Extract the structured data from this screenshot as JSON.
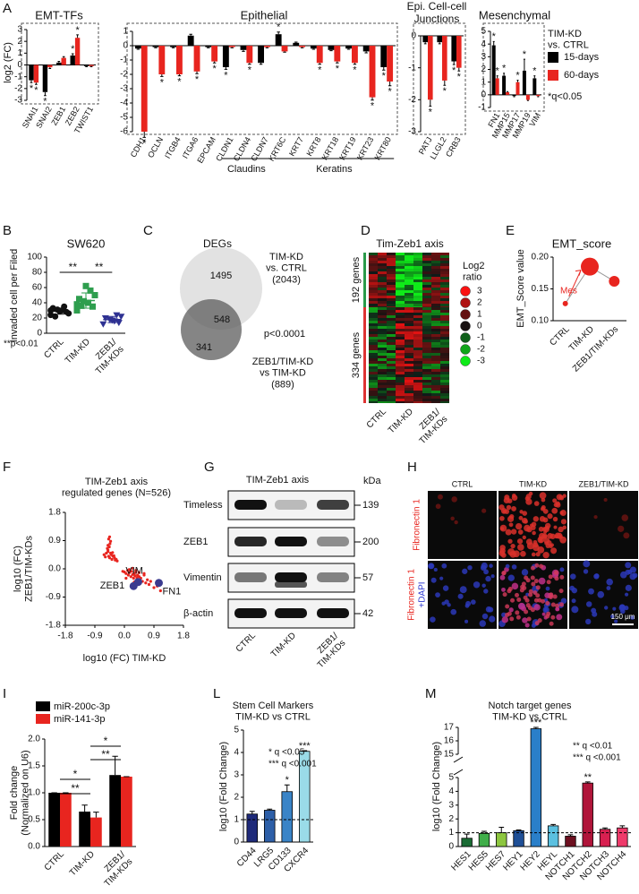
{
  "panel_labels": [
    "A",
    "B",
    "C",
    "D",
    "E",
    "F",
    "G",
    "H",
    "I",
    "L",
    "M"
  ],
  "chart_data": [
    {
      "type": "bar",
      "title": "EMT-TFs",
      "ylabel": "log2 (FC)",
      "legend_title": "TIM-KD\nvs. CTRL",
      "note": "*q<0.05",
      "categories": [
        "SNAI1",
        "SNAI2",
        "ZEB1",
        "ZEB2",
        "TWIST1"
      ],
      "series": [
        {
          "name": "15-days",
          "color": "#000000",
          "values": [
            -1.3,
            -2.3,
            0.2,
            0.8,
            -0.1
          ],
          "errors": [
            0.2,
            0.3,
            0.1,
            0.15,
            0.05
          ],
          "stars": [
            "*",
            "*",
            null,
            "*",
            null
          ]
        },
        {
          "name": "60-days",
          "color": "#e8251f",
          "values": [
            -1.5,
            -0.2,
            0.6,
            2.3,
            -0.1
          ],
          "errors": [
            0.15,
            0.1,
            0.1,
            0.25,
            0.05
          ],
          "stars": [
            "*",
            null,
            null,
            "*",
            null
          ]
        }
      ],
      "ylim": [
        -3,
        3
      ],
      "yticks": [
        -3,
        -2,
        -1,
        0,
        1,
        2,
        3
      ]
    },
    {
      "type": "bar",
      "title": "Epithelial",
      "categories": [
        "CDH1",
        "OCLN",
        "ITGB4",
        "ITGA6",
        "EPCAM",
        "CLDN1",
        "CLDN4",
        "CLDN7",
        "KRT6C",
        "KRT7",
        "KRT8",
        "KRT18",
        "KRT19",
        "KRT23",
        "KRT80"
      ],
      "groups": [
        {
          "label": "Claudins",
          "categories": [
            "CLDN1",
            "CLDN4",
            "CLDN7"
          ]
        },
        {
          "label": "Keratins",
          "categories": [
            "KRT6C",
            "KRT7",
            "KRT8",
            "KRT18",
            "KRT19",
            "KRT23",
            "KRT80"
          ]
        }
      ],
      "series": [
        {
          "name": "15-days",
          "color": "#000000",
          "values": [
            -0.2,
            -0.1,
            -0.1,
            0.7,
            -0.1,
            -1.5,
            -0.3,
            -1.2,
            0.8,
            0.2,
            -0.2,
            -0.3,
            -0.2,
            -0.4,
            -1.5
          ],
          "errors": [
            0.05,
            0.05,
            0.05,
            0.1,
            0.05,
            0.15,
            0.1,
            0.1,
            0.15,
            0.05,
            0.05,
            0.05,
            0.05,
            0.1,
            0.2
          ],
          "stars": [
            null,
            null,
            null,
            null,
            null,
            "*",
            null,
            null,
            "*",
            null,
            null,
            null,
            null,
            null,
            "*"
          ]
        },
        {
          "name": "60-days",
          "color": "#e8251f",
          "values": [
            -6.0,
            -2.0,
            -2.0,
            -1.8,
            -1.1,
            -0.1,
            -1.2,
            -0.1,
            -0.4,
            -0.1,
            -1.2,
            -1.1,
            -1.2,
            -3.6,
            -2.5
          ],
          "errors": [
            0.4,
            0.15,
            0.1,
            0.15,
            0.1,
            0.05,
            0.1,
            0.05,
            0.05,
            0.05,
            0.1,
            0.1,
            0.1,
            0.2,
            0.3
          ],
          "stars": [
            "*",
            "*",
            "*",
            "*",
            "*",
            null,
            "*",
            null,
            null,
            null,
            "*",
            "*",
            "*",
            "*",
            "*"
          ]
        }
      ],
      "ylim": [
        -6,
        1
      ],
      "yticks": [
        -6,
        -5,
        -4,
        -3,
        -2,
        -1,
        0,
        1
      ]
    },
    {
      "type": "bar",
      "title": "Epi. Cell-cell\nJunctions",
      "categories": [
        "PATJ",
        "LLGL2",
        "CRB3"
      ],
      "series": [
        {
          "name": "15-days",
          "color": "#000000",
          "values": [
            -0.2,
            -0.2,
            -0.8
          ],
          "errors": [
            0.05,
            0.05,
            0.1
          ],
          "stars": [
            null,
            null,
            "*"
          ]
        },
        {
          "name": "60-days",
          "color": "#e8251f",
          "values": [
            -2.0,
            -1.4,
            -1.0
          ],
          "errors": [
            0.2,
            0.15,
            0.1
          ],
          "stars": [
            "*",
            "*",
            "*"
          ]
        }
      ],
      "ylim": [
        -3,
        0
      ],
      "yticks": [
        -3,
        -2,
        -1,
        0
      ]
    },
    {
      "type": "bar",
      "title": "Mesenchymal",
      "categories": [
        "FN1",
        "MMP15",
        "MMP17",
        "MMP19",
        "VIM"
      ],
      "series": [
        {
          "name": "15-days",
          "color": "#000000",
          "values": [
            3.9,
            1.5,
            -0.1,
            1.9,
            1.3
          ],
          "errors": [
            0.3,
            0.2,
            0.05,
            0.9,
            0.2
          ],
          "stars": [
            "*",
            "*",
            null,
            "*",
            "*"
          ]
        },
        {
          "name": "60-days",
          "color": "#e8251f",
          "values": [
            1.3,
            0.2,
            1.0,
            -0.4,
            -0.1
          ],
          "errors": [
            0.2,
            0.05,
            0.15,
            0.05,
            0.05
          ],
          "stars": [
            "*",
            null,
            "*",
            null,
            null
          ]
        }
      ],
      "ylim": [
        -1,
        5
      ],
      "yticks": [
        -1,
        0,
        1,
        2,
        3,
        4,
        5
      ]
    },
    {
      "type": "strip",
      "title": "SW620",
      "ylabel": "Invaded cell per Filed",
      "note": "**p<0.01",
      "categories": [
        "CTRL",
        "TIM-KD",
        "ZEB1/\nTIM-KDs"
      ],
      "points": [
        [
          24,
          28,
          30,
          31,
          33,
          26,
          35,
          29,
          22,
          30
        ],
        [
          30,
          35,
          40,
          42,
          45,
          50,
          56,
          62,
          36,
          38
        ],
        [
          12,
          14,
          16,
          18,
          20,
          22,
          24,
          17
        ]
      ],
      "means": [
        29,
        43,
        18
      ],
      "sds": [
        4,
        10,
        4
      ],
      "colors": [
        "#111111",
        "#2e9e4e",
        "#2e3192"
      ],
      "markers": [
        "circle",
        "square",
        "triangle"
      ],
      "brackets": [
        {
          "text": "**",
          "from": "CTRL",
          "to": "TIM-KD"
        },
        {
          "text": "**",
          "from": "TIM-KD",
          "to": "ZEB1/\nTIM-KDs"
        }
      ],
      "ylim": [
        0,
        100
      ],
      "yticks": [
        0,
        20,
        40,
        60,
        80,
        100
      ]
    },
    {
      "type": "bubble",
      "title": "EMT_score",
      "ylabel": "EMT_Score value",
      "annotation": "Mes",
      "categories": [
        "CTRL",
        "TIM-KD",
        "ZEB1/TIM-KDs"
      ],
      "values": [
        0.127,
        0.185,
        0.162
      ],
      "sizes": [
        3,
        10,
        6
      ],
      "color": "#e8251f",
      "ylim": [
        0.1,
        0.2
      ],
      "yticks": [
        {
          "value": 0.1,
          "label": "0.10"
        },
        0.15,
        {
          "value": 0.2,
          "label": "0.20"
        }
      ]
    },
    {
      "type": "scatter",
      "title": "TIM-Zeb1 axis\nregulated genes (N=526)",
      "xlabel": "log10 (FC) TIM-KD",
      "ylabel": "log10 (FC)\nZEB1/TIM-KDs",
      "color": "#e8251f",
      "x": [
        -0.62,
        -0.55,
        -0.5,
        -0.48,
        -0.45,
        -0.42,
        -0.4,
        -0.38,
        -0.35,
        -0.3,
        -0.28,
        -0.25,
        -0.22,
        -0.5,
        -0.46,
        -0.44,
        -0.52,
        -0.58,
        -0.36,
        -0.32,
        -0.48,
        -0.45,
        -0.42,
        -0.5,
        0.0,
        0.05,
        0.1,
        0.12,
        0.15,
        0.2,
        0.22,
        0.25,
        0.28,
        0.3,
        0.32,
        0.35,
        0.38,
        0.4,
        0.42,
        0.45,
        0.5,
        0.55,
        0.6,
        0.65,
        0.7,
        0.75,
        0.8,
        0.9,
        1.0,
        1.1,
        0.15,
        0.25,
        0.35,
        0.45,
        0.05,
        -0.05,
        0.6,
        0.3
      ],
      "values": [
        0.45,
        0.5,
        0.55,
        0.4,
        0.35,
        0.5,
        0.45,
        0.3,
        0.4,
        0.35,
        0.28,
        0.3,
        0.25,
        0.6,
        0.7,
        0.8,
        0.65,
        0.38,
        0.52,
        0.42,
        0.95,
        1.02,
        0.88,
        0.75,
        -0.1,
        -0.15,
        -0.05,
        -0.2,
        -0.12,
        -0.25,
        -0.08,
        -0.18,
        -0.3,
        -0.15,
        -0.22,
        -0.1,
        -0.28,
        -0.2,
        -0.35,
        -0.25,
        -0.3,
        -0.4,
        -0.2,
        -0.45,
        -0.35,
        -0.5,
        -0.4,
        -0.6,
        -0.55,
        -0.7,
        -0.02,
        0.02,
        -0.05,
        -0.12,
        -0.3,
        -0.08,
        -0.15,
        -0.42
      ],
      "highlights": [
        {
          "label": "VIM",
          "x": 0.42,
          "y": -0.42,
          "color": "#3b3b8f"
        },
        {
          "label": "ZEB1",
          "x": 0.28,
          "y": -0.55,
          "color": "#3b3b8f"
        },
        {
          "label": "FN1",
          "x": 1.05,
          "y": -0.45,
          "color": "#3b3b8f"
        }
      ],
      "xlim": [
        -1.8,
        1.8
      ],
      "xticks": [
        -1.8,
        -0.9,
        {
          "value": 0,
          "label": "0.0"
        },
        0.9,
        1.8
      ],
      "ylim": [
        -1.8,
        1.8
      ],
      "yticks": [
        -1.8,
        -0.9,
        {
          "value": 0,
          "label": "0.0"
        },
        0.9,
        1.8
      ]
    },
    {
      "type": "bar",
      "ylabel": "Fold change\n(Normalized on U6)",
      "categories": [
        "CTRL",
        "TIM-KD",
        "ZEB1/\nTIM-KDs"
      ],
      "series": [
        {
          "name": "miR-200c-3p",
          "color": "#000000",
          "values": [
            1.0,
            0.65,
            1.33
          ],
          "errors": [
            0,
            0.12,
            0.35
          ]
        },
        {
          "name": "miR-141-3p",
          "color": "#e8251f",
          "values": [
            1.0,
            0.54,
            1.3
          ],
          "errors": [
            0,
            0.1,
            0
          ]
        }
      ],
      "brackets": [
        {
          "text": "*",
          "from": "CTRL",
          "to": "TIM-KD"
        },
        {
          "text": "**",
          "from": "CTRL",
          "to": "TIM-KD"
        },
        {
          "text": "*",
          "from": "TIM-KD",
          "to": "ZEB1/\nTIM-KDs"
        },
        {
          "text": "**",
          "from": "TIM-KD",
          "to": "ZEB1/\nTIM-KDs"
        }
      ],
      "ylim": [
        0,
        2
      ],
      "yticks": [
        {
          "value": 0,
          "label": "0.0"
        },
        0.5,
        {
          "value": 1,
          "label": "1.0"
        },
        1.5,
        {
          "value": 2,
          "label": "2.0"
        }
      ]
    },
    {
      "type": "bar",
      "title": "Stem Cell Markers\nTIM-KD vs CTRL",
      "ylabel": "log10 (Fold Change)",
      "notes": [
        "* q <0.05",
        "*** q <0.001"
      ],
      "categories": [
        "CD44",
        "LRG5",
        "CD133",
        "CXCR4"
      ],
      "values": [
        1.25,
        1.42,
        2.25,
        4.05
      ],
      "errors": [
        0.12,
        0.05,
        0.3,
        0.03
      ],
      "stars": [
        null,
        null,
        "*",
        "***"
      ],
      "colors": [
        "#1f2a7a",
        "#2d5fa8",
        "#3a84c7",
        "#9adbe8"
      ],
      "hline": 1,
      "ylim": [
        0,
        5
      ],
      "yticks": [
        0,
        1,
        2,
        3,
        4,
        5
      ]
    },
    {
      "type": "bar",
      "title": "Notch target genes\nTIM-KD vs CTRL",
      "ylabel": "log10 (Fold Change)",
      "notes": [
        "** q <0.01",
        "*** q <0.001"
      ],
      "categories": [
        "HES1",
        "HES5",
        "HES7",
        "HEY1",
        "HEY2",
        "HEYL",
        "NOTCH1",
        "NOTCH2",
        "NOTCH3",
        "NOTCH4"
      ],
      "values": [
        0.6,
        0.95,
        1.0,
        1.15,
        16.9,
        1.5,
        0.75,
        4.6,
        1.25,
        1.35
      ],
      "errors": [
        0.3,
        0.15,
        0.4,
        0.05,
        0.1,
        0.1,
        0.1,
        0.08,
        0.1,
        0.15
      ],
      "stars": [
        null,
        null,
        null,
        null,
        "***",
        null,
        null,
        "**",
        null,
        null
      ],
      "colors": [
        "#1a6b34",
        "#3fae49",
        "#8dc63f",
        "#1f4f96",
        "#2a7fc9",
        "#5bc0e0",
        "#6d1020",
        "#b0153a",
        "#d82050",
        "#ee3a6a"
      ],
      "hline": 1,
      "ylim": [
        0,
        17
      ],
      "ybreak": [
        5,
        15
      ],
      "yticks": [
        0,
        1,
        2,
        3,
        4,
        5,
        15,
        16,
        17
      ]
    }
  ],
  "venn": {
    "title": "DEGs",
    "sets": [
      "TIM-KD\nvs. CTRL\n(2043)",
      "ZEB1/TIM-KD\nvs TIM-KD\n(889)"
    ],
    "counts": [
      1495,
      548,
      341
    ],
    "p": "p<0.0001"
  },
  "heatmap": {
    "title": "Tim-Zeb1 axis",
    "row_groups": [
      "192 genes",
      "334 genes"
    ],
    "columns": [
      "CTRL",
      "TIM-KD",
      "ZEB1/\nTIM-KDs"
    ],
    "legend_title": "Log2\nratio",
    "legend": [
      3,
      2,
      1,
      0,
      -1,
      -2,
      -3
    ]
  },
  "western": {
    "title": "TIM-Zeb1 axis",
    "unit": "kDa",
    "proteins": [
      "Timeless",
      "ZEB1",
      "Vimentin",
      "β-actin"
    ],
    "sizes": [
      139,
      200,
      57,
      42
    ],
    "lanes": [
      "CTRL",
      "TIM-KD",
      "ZEB1/\nTIM-KDs"
    ]
  },
  "microscopy": {
    "columns": [
      "CTRL",
      "TIM-KD",
      "ZEB1/TIM-KD"
    ],
    "rows": [
      [
        "Fibronectin 1"
      ],
      [
        "Fibronectin 1",
        "+DAPI"
      ]
    ],
    "scale_bar": "150 μm"
  }
}
